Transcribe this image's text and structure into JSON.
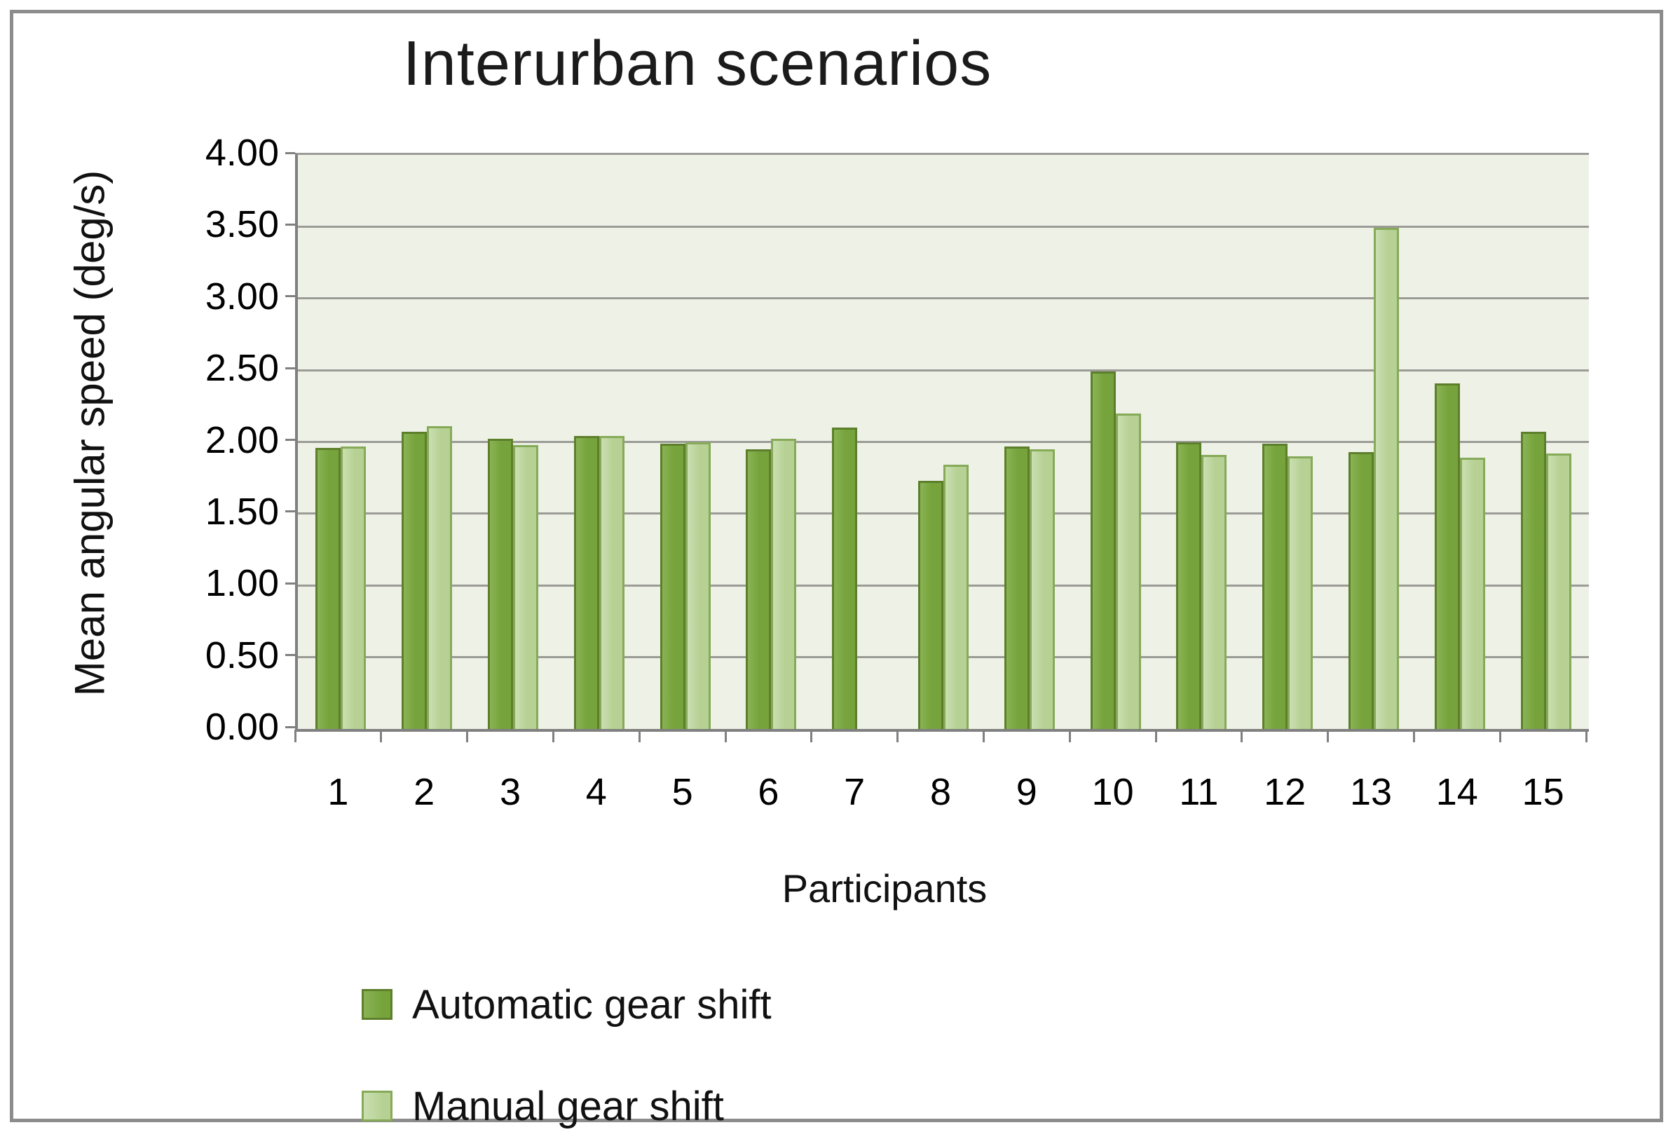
{
  "chart_data": {
    "type": "bar",
    "title": "Interurban scenarios",
    "xlabel": "Participants",
    "ylabel": "Mean angular speed (deg/s)",
    "categories": [
      "1",
      "2",
      "3",
      "4",
      "5",
      "6",
      "7",
      "8",
      "9",
      "10",
      "11",
      "12",
      "13",
      "14",
      "15"
    ],
    "series": [
      {
        "name": "Automatic gear shift",
        "color": "#76a33b",
        "edge_highlight": "#8ab355",
        "border": "#5d7f2c",
        "values": [
          1.96,
          2.07,
          2.02,
          2.04,
          1.99,
          1.95,
          2.1,
          1.73,
          1.97,
          2.49,
          2.0,
          1.99,
          1.93,
          2.41,
          2.07
        ]
      },
      {
        "name": "Manual gear shift",
        "color": "#b7d195",
        "edge_highlight": "#cadfb0",
        "border": "#86aa58",
        "values": [
          1.97,
          2.11,
          1.98,
          2.04,
          2.0,
          2.02,
          0,
          1.84,
          1.95,
          2.2,
          1.91,
          1.9,
          3.49,
          1.89,
          1.92
        ]
      }
    ],
    "ylim": [
      0,
      4
    ],
    "ytick_step": 0.5,
    "ytick_labels": [
      "0.00",
      "0.50",
      "1.00",
      "1.50",
      "2.00",
      "2.50",
      "3.00",
      "3.50",
      "4.00"
    ],
    "grid": true,
    "legend_position": "bottom-left",
    "plot_bg": "#edf1e6",
    "gridline_color": "#9c9c97",
    "axis_color": "#808080"
  }
}
